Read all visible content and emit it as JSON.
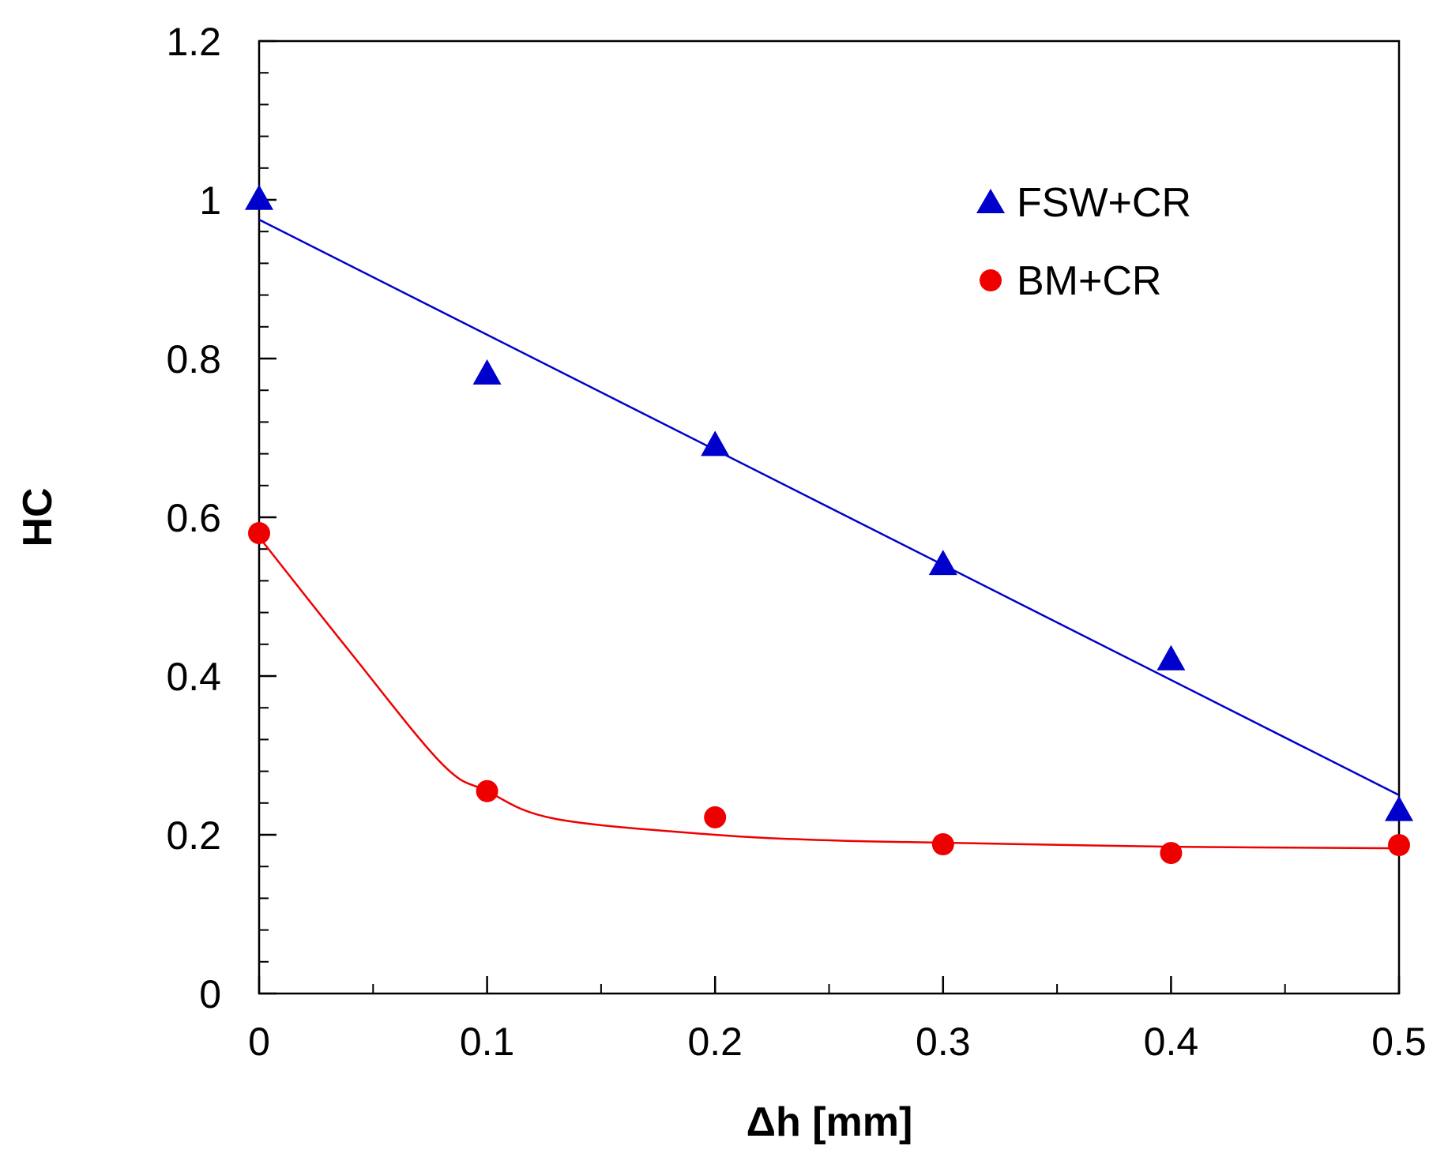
{
  "chart_data": {
    "type": "scatter",
    "title": "",
    "xlabel": "Δh [mm]",
    "ylabel": "HC",
    "xlim": [
      0,
      0.5
    ],
    "ylim": [
      0,
      1.2
    ],
    "x_ticks": [
      0,
      0.1,
      0.2,
      0.3,
      0.4,
      0.5
    ],
    "x_tick_labels": [
      "0",
      "0.1",
      "0.2",
      "0.3",
      "0.4",
      "0.5"
    ],
    "x_minor_step": 0.05,
    "y_ticks": [
      0,
      0.2,
      0.4,
      0.6,
      0.8,
      1.0,
      1.2
    ],
    "y_tick_labels": [
      "0",
      "0.2",
      "0.4",
      "0.6",
      "0.8",
      "1",
      "1.2"
    ],
    "y_minor_step": 0.04,
    "grid": false,
    "legend_position": "top-right",
    "series": [
      {
        "name": "FSW+CR",
        "marker": "triangle",
        "color": "#0000cc",
        "x": [
          0,
          0.1,
          0.2,
          0.3,
          0.4,
          0.5
        ],
        "y": [
          1.0,
          0.78,
          0.69,
          0.54,
          0.42,
          0.23
        ],
        "fit": {
          "kind": "linear",
          "x": [
            0,
            0.5
          ],
          "y": [
            0.975,
            0.25
          ]
        }
      },
      {
        "name": "BM+CR",
        "marker": "circle",
        "color": "#ee0000",
        "x": [
          0,
          0.1,
          0.2,
          0.3,
          0.4,
          0.5
        ],
        "y": [
          0.58,
          0.255,
          0.222,
          0.188,
          0.177,
          0.187
        ],
        "fit": {
          "kind": "smooth",
          "x": [
            0,
            0.04,
            0.08,
            0.1,
            0.13,
            0.2,
            0.25,
            0.3,
            0.4,
            0.5
          ],
          "y": [
            0.575,
            0.43,
            0.29,
            0.255,
            0.22,
            0.2,
            0.193,
            0.19,
            0.185,
            0.183
          ]
        }
      }
    ]
  }
}
